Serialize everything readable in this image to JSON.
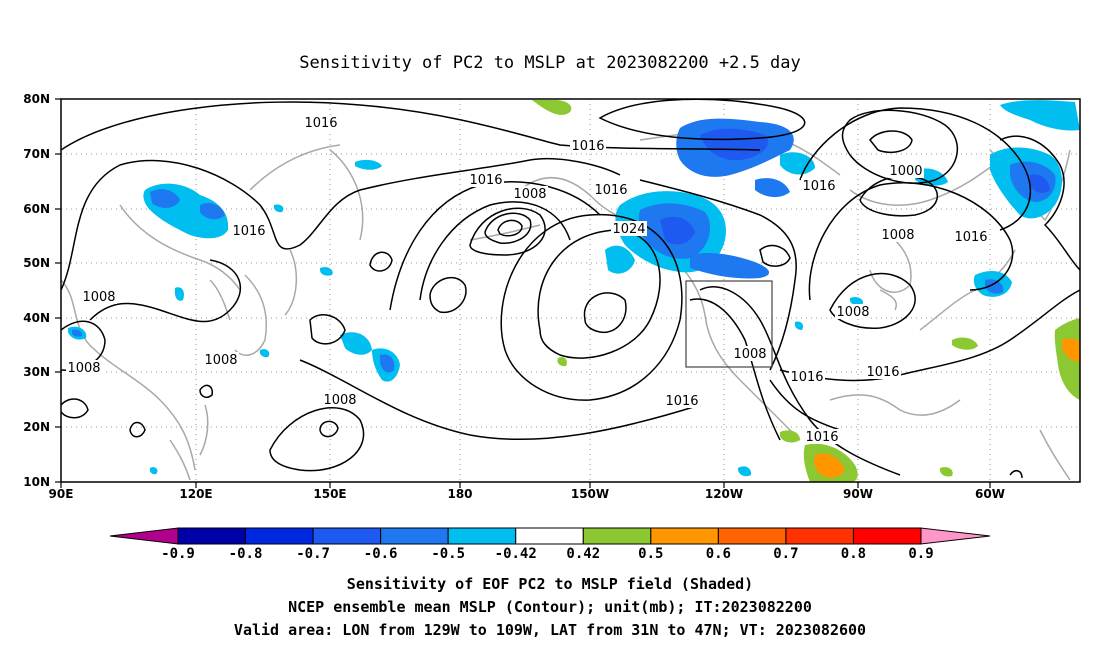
{
  "title": "Sensitivity of PC2 to MSLP at 2023082200 +2.5 day",
  "map": {
    "lat_labels": [
      "80N",
      "70N",
      "60N",
      "50N",
      "40N",
      "30N",
      "20N",
      "10N"
    ],
    "lon_labels": [
      "90E",
      "120E",
      "150E",
      "180",
      "150W",
      "120W",
      "90W",
      "60W"
    ],
    "contour_labels": [
      "1016",
      "1016",
      "1016",
      "1008",
      "1016",
      "1016",
      "1024",
      "1016",
      "1000",
      "1008",
      "1016",
      "1008",
      "1008",
      "1008",
      "1008",
      "1008",
      "1016",
      "1016",
      "1016",
      "1008",
      "1016",
      "1016"
    ],
    "valid_box": {
      "lon_min": -129,
      "lon_max": -109,
      "lat_min": 31,
      "lat_max": 47
    }
  },
  "colorbar": {
    "labels": [
      "-0.9",
      "-0.8",
      "-0.7",
      "-0.6",
      "-0.5",
      "-0.42",
      "0.42",
      "0.5",
      "0.6",
      "0.7",
      "0.8",
      "0.9"
    ],
    "colors": [
      "#b0008c",
      "#0000a8",
      "#0028e0",
      "#1e5af0",
      "#1e78f0",
      "#00bef0",
      "#ffffff",
      "#8cc832",
      "#ff9600",
      "#ff6400",
      "#ff3200",
      "#ff0000",
      "#ff96c8"
    ]
  },
  "footer": {
    "line1": "Sensitivity of EOF PC2 to MSLP field (Shaded)",
    "line2": "NCEP ensemble mean MSLP (Contour); unit(mb); IT:2023082200",
    "line3": "Valid area: LON from 129W to 109W, LAT from 31N to 47N; VT: 2023082600"
  }
}
